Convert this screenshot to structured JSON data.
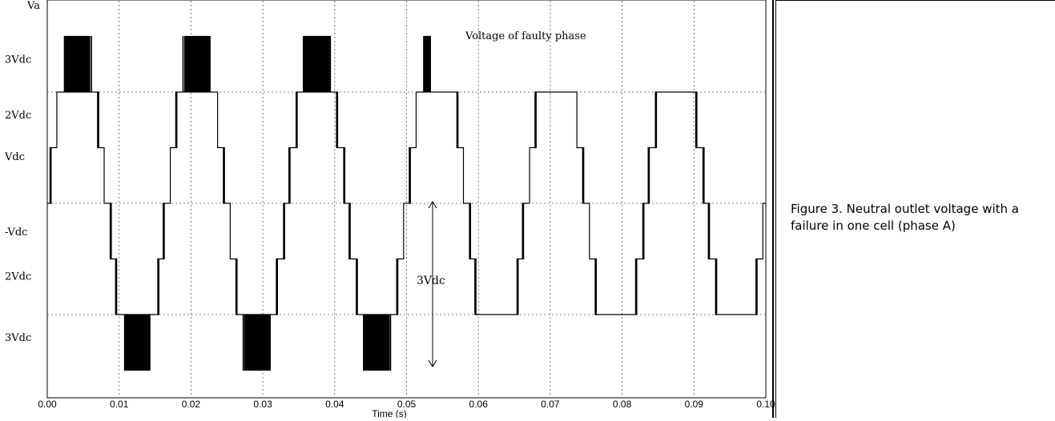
{
  "caption": "Figure 3. Neutral outlet voltage with a failure in one cell (phase A)",
  "chart_data": {
    "type": "line",
    "title": "",
    "ylabel": "Va",
    "xlabel": "Time (s)",
    "xlim": [
      0,
      0.1
    ],
    "ylim": [
      -3.5,
      3.5
    ],
    "x_ticks": [
      "0.00",
      "0.01",
      "0.02",
      "0.03",
      "0.04",
      "0.05",
      "0.06",
      "0.07",
      "0.08",
      "0.09",
      "0.10"
    ],
    "y_ticks": [
      {
        "value": 2.6,
        "label": "3Vdc"
      },
      {
        "value": 1.6,
        "label": "2Vdc"
      },
      {
        "value": 0.85,
        "label": "Vdc"
      },
      {
        "value": -0.5,
        "label": "-Vdc"
      },
      {
        "value": -1.3,
        "label": "2Vdc"
      },
      {
        "value": -2.4,
        "label": "3Vdc"
      }
    ],
    "y_levels": {
      "+3Vdc": 3,
      "+2Vdc": 2,
      "+Vdc": 1,
      "0": 0,
      "-Vdc": -1,
      "-2Vdc": -2,
      "-3Vdc": -3
    },
    "annotations": [
      {
        "text": "Voltage of faulty phase",
        "x": 0.053,
        "y": 3.0
      },
      {
        "text": "3Vdc",
        "x": 0.0515,
        "y": -1.2
      }
    ],
    "arrow": {
      "x": 0.0516,
      "y_from": 0,
      "y_to": -3
    },
    "fundamental_hz": 60,
    "series": [
      {
        "segments": [
          {
            "t0": 0.0,
            "t1": 0.05,
            "max_level": 3,
            "min_level": -3
          },
          {
            "t0": 0.05,
            "t1": 0.0533,
            "max_level": 3,
            "min_level": -2
          },
          {
            "t0": 0.0533,
            "t1": 0.1,
            "max_level": 2,
            "min_level": -2
          }
        ],
        "color": "#000000"
      }
    ]
  }
}
